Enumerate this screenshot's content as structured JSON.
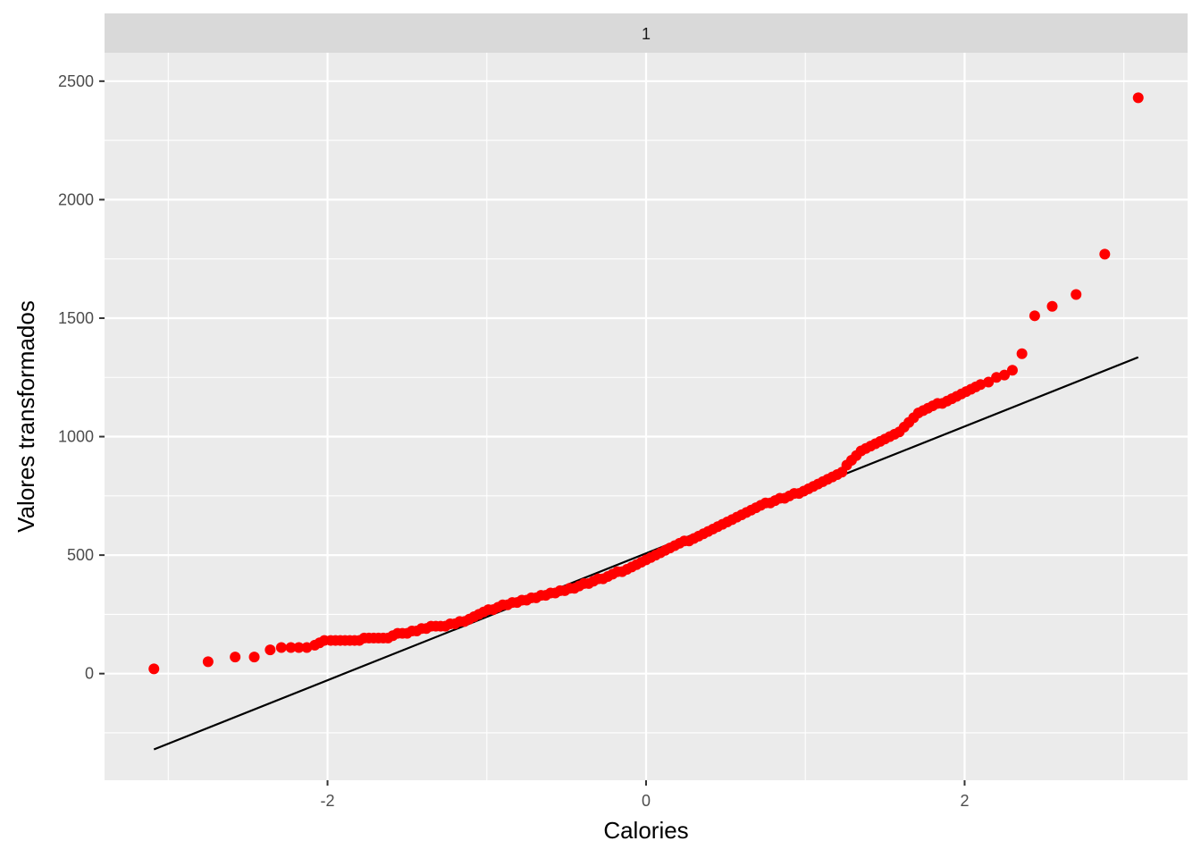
{
  "chart_data": {
    "type": "scatter",
    "facet_label": "1",
    "xlabel": "Calories",
    "ylabel": "Valores transformados",
    "xlim": [
      -3.4,
      3.4
    ],
    "ylim": [
      -450,
      2620
    ],
    "x_ticks": [
      -2,
      0,
      2
    ],
    "y_ticks": [
      0,
      500,
      1000,
      1500,
      2000,
      2500
    ],
    "x_tick_labels": [
      "-2",
      "0",
      "2"
    ],
    "y_tick_labels": [
      "0",
      "500",
      "1000",
      "1500",
      "2000",
      "2500"
    ],
    "grid": true,
    "legend": "none",
    "colors": {
      "point": "#ff0000",
      "line": "#000000",
      "panel": "#ebebeb",
      "strip": "#d9d9d9",
      "grid": "#ffffff"
    },
    "reference_line": {
      "x": [
        -3.09,
        3.09
      ],
      "y": [
        -320,
        1335
      ]
    },
    "series": [
      {
        "points": [
          [
            -3.09,
            20
          ],
          [
            -2.75,
            50
          ],
          [
            -2.58,
            70
          ],
          [
            -2.46,
            70
          ],
          [
            -2.36,
            100
          ],
          [
            -2.29,
            110
          ],
          [
            -2.23,
            110
          ],
          [
            -2.18,
            110
          ],
          [
            -2.13,
            110
          ],
          [
            -2.08,
            120
          ],
          [
            -2.05,
            130
          ],
          [
            -2.02,
            140
          ],
          [
            -1.98,
            140
          ],
          [
            -1.95,
            140
          ],
          [
            -1.92,
            140
          ],
          [
            -1.89,
            140
          ],
          [
            -1.86,
            140
          ],
          [
            -1.83,
            140
          ],
          [
            -1.8,
            140
          ],
          [
            -1.77,
            150
          ],
          [
            -1.74,
            150
          ],
          [
            -1.71,
            150
          ],
          [
            -1.68,
            150
          ],
          [
            -1.65,
            150
          ],
          [
            -1.62,
            150
          ],
          [
            -1.59,
            160
          ],
          [
            -1.56,
            170
          ],
          [
            -1.53,
            170
          ],
          [
            -1.5,
            170
          ],
          [
            -1.47,
            180
          ],
          [
            -1.44,
            180
          ],
          [
            -1.41,
            190
          ],
          [
            -1.38,
            190
          ],
          [
            -1.35,
            200
          ],
          [
            -1.32,
            200
          ],
          [
            -1.29,
            200
          ],
          [
            -1.26,
            200
          ],
          [
            -1.23,
            210
          ],
          [
            -1.2,
            210
          ],
          [
            -1.17,
            220
          ],
          [
            -1.14,
            220
          ],
          [
            -1.11,
            230
          ],
          [
            -1.08,
            240
          ],
          [
            -1.05,
            250
          ],
          [
            -1.02,
            260
          ],
          [
            -0.99,
            270
          ],
          [
            -0.96,
            270
          ],
          [
            -0.93,
            280
          ],
          [
            -0.9,
            290
          ],
          [
            -0.87,
            290
          ],
          [
            -0.84,
            300
          ],
          [
            -0.81,
            300
          ],
          [
            -0.78,
            310
          ],
          [
            -0.75,
            310
          ],
          [
            -0.72,
            320
          ],
          [
            -0.69,
            320
          ],
          [
            -0.66,
            330
          ],
          [
            -0.63,
            330
          ],
          [
            -0.6,
            340
          ],
          [
            -0.57,
            340
          ],
          [
            -0.54,
            350
          ],
          [
            -0.51,
            350
          ],
          [
            -0.48,
            360
          ],
          [
            -0.45,
            360
          ],
          [
            -0.42,
            370
          ],
          [
            -0.39,
            380
          ],
          [
            -0.36,
            380
          ],
          [
            -0.33,
            390
          ],
          [
            -0.3,
            400
          ],
          [
            -0.27,
            400
          ],
          [
            -0.24,
            410
          ],
          [
            -0.21,
            420
          ],
          [
            -0.18,
            430
          ],
          [
            -0.15,
            430
          ],
          [
            -0.12,
            440
          ],
          [
            -0.09,
            450
          ],
          [
            -0.06,
            460
          ],
          [
            -0.03,
            470
          ],
          [
            0,
            480
          ],
          [
            0.03,
            490
          ],
          [
            0.06,
            500
          ],
          [
            0.09,
            510
          ],
          [
            0.12,
            520
          ],
          [
            0.15,
            530
          ],
          [
            0.18,
            540
          ],
          [
            0.21,
            550
          ],
          [
            0.24,
            560
          ],
          [
            0.27,
            560
          ],
          [
            0.3,
            570
          ],
          [
            0.33,
            580
          ],
          [
            0.36,
            590
          ],
          [
            0.39,
            600
          ],
          [
            0.42,
            610
          ],
          [
            0.45,
            620
          ],
          [
            0.48,
            630
          ],
          [
            0.51,
            640
          ],
          [
            0.54,
            650
          ],
          [
            0.57,
            660
          ],
          [
            0.6,
            670
          ],
          [
            0.63,
            680
          ],
          [
            0.66,
            690
          ],
          [
            0.69,
            700
          ],
          [
            0.72,
            710
          ],
          [
            0.75,
            720
          ],
          [
            0.78,
            720
          ],
          [
            0.81,
            730
          ],
          [
            0.84,
            740
          ],
          [
            0.87,
            740
          ],
          [
            0.9,
            750
          ],
          [
            0.93,
            760
          ],
          [
            0.96,
            760
          ],
          [
            0.99,
            770
          ],
          [
            1.02,
            780
          ],
          [
            1.05,
            790
          ],
          [
            1.08,
            800
          ],
          [
            1.11,
            810
          ],
          [
            1.14,
            820
          ],
          [
            1.17,
            830
          ],
          [
            1.2,
            840
          ],
          [
            1.23,
            850
          ],
          [
            1.26,
            880
          ],
          [
            1.29,
            900
          ],
          [
            1.32,
            920
          ],
          [
            1.35,
            940
          ],
          [
            1.38,
            950
          ],
          [
            1.41,
            960
          ],
          [
            1.44,
            970
          ],
          [
            1.47,
            980
          ],
          [
            1.5,
            990
          ],
          [
            1.53,
            1000
          ],
          [
            1.56,
            1010
          ],
          [
            1.59,
            1020
          ],
          [
            1.62,
            1040
          ],
          [
            1.65,
            1060
          ],
          [
            1.68,
            1080
          ],
          [
            1.71,
            1100
          ],
          [
            1.74,
            1110
          ],
          [
            1.77,
            1120
          ],
          [
            1.8,
            1130
          ],
          [
            1.83,
            1140
          ],
          [
            1.86,
            1140
          ],
          [
            1.89,
            1150
          ],
          [
            1.92,
            1160
          ],
          [
            1.95,
            1170
          ],
          [
            1.98,
            1180
          ],
          [
            2.01,
            1190
          ],
          [
            2.04,
            1200
          ],
          [
            2.07,
            1210
          ],
          [
            2.1,
            1220
          ],
          [
            2.15,
            1230
          ],
          [
            2.2,
            1250
          ],
          [
            2.25,
            1260
          ],
          [
            2.3,
            1280
          ],
          [
            2.36,
            1350
          ],
          [
            2.44,
            1510
          ],
          [
            2.55,
            1550
          ],
          [
            2.7,
            1600
          ],
          [
            2.88,
            1770
          ],
          [
            3.09,
            2430
          ]
        ]
      }
    ]
  }
}
